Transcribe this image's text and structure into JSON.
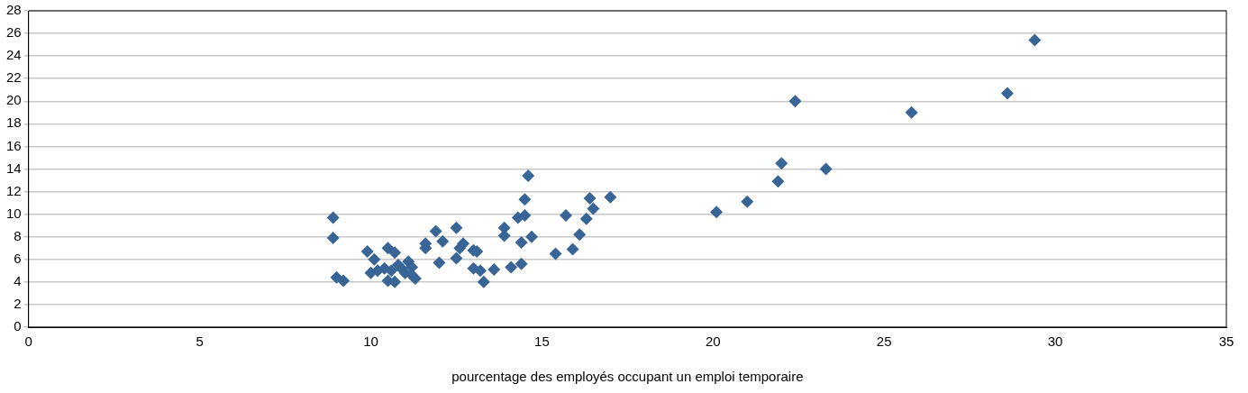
{
  "chart_data": {
    "type": "scatter",
    "xlabel": "pourcentage des employés occupant un emploi temporaire",
    "x": [
      8.9,
      8.9,
      9.0,
      9.2,
      9.9,
      10.0,
      10.1,
      10.2,
      10.4,
      10.5,
      10.5,
      10.7,
      10.6,
      10.7,
      10.8,
      10.9,
      11.0,
      11.1,
      11.2,
      11.2,
      11.3,
      11.6,
      11.6,
      11.9,
      12.0,
      12.1,
      12.5,
      12.5,
      12.6,
      12.7,
      13.0,
      13.0,
      13.1,
      13.2,
      13.3,
      13.6,
      13.9,
      13.9,
      14.1,
      14.3,
      14.4,
      14.4,
      14.5,
      14.5,
      14.6,
      14.7,
      15.4,
      15.7,
      15.9,
      16.1,
      16.3,
      16.4,
      16.5,
      17.0,
      20.1,
      21.0,
      21.9,
      22.0,
      22.4,
      23.3,
      25.8,
      28.6,
      29.4
    ],
    "values": [
      9.7,
      7.9,
      4.4,
      4.1,
      6.7,
      4.8,
      6.0,
      5.0,
      5.2,
      7.0,
      4.1,
      6.6,
      5.0,
      4.0,
      5.5,
      5.2,
      4.8,
      5.8,
      5.3,
      4.6,
      4.3,
      7.0,
      7.4,
      8.5,
      5.7,
      7.6,
      8.8,
      6.1,
      7.0,
      7.4,
      6.8,
      5.2,
      6.7,
      5.0,
      4.0,
      5.1,
      8.8,
      8.1,
      5.3,
      9.7,
      7.5,
      5.6,
      9.9,
      11.3,
      13.4,
      8.0,
      6.5,
      9.9,
      6.9,
      8.2,
      9.6,
      11.4,
      10.5,
      11.5,
      10.2,
      11.1,
      12.9,
      14.5,
      20.0,
      14.0,
      19.0,
      20.7,
      25.4
    ],
    "color": "#386496",
    "marker": "diamond",
    "grid": "y",
    "legend": false,
    "xlim": [
      0,
      35
    ],
    "xticks": [
      0,
      5,
      10,
      15,
      20,
      25,
      30,
      35
    ],
    "ylim": [
      0,
      28
    ],
    "yticks": [
      0,
      2,
      4,
      6,
      8,
      10,
      12,
      14,
      16,
      18,
      20,
      22,
      24,
      26,
      28
    ]
  }
}
